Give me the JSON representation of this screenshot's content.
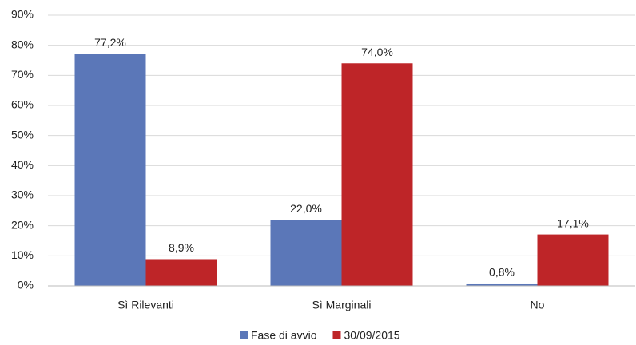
{
  "chart_data": {
    "type": "bar",
    "categories": [
      "Sì Rilevanti",
      "Sì Marginali",
      "No"
    ],
    "series": [
      {
        "name": "Fase di avvio",
        "color": "#5b77b8",
        "values": [
          77.2,
          22.0,
          0.8
        ],
        "value_labels": [
          "77,2%",
          "22,0%",
          "0,8%"
        ]
      },
      {
        "name": "30/09/2015",
        "color": "#be2528",
        "values": [
          8.9,
          74.0,
          17.1
        ],
        "value_labels": [
          "8,9%",
          "74,0%",
          "17,1%"
        ]
      }
    ],
    "ylim": [
      0,
      90
    ],
    "yticks": [
      {
        "value": 0,
        "label": "0%"
      },
      {
        "value": 10,
        "label": "10%"
      },
      {
        "value": 20,
        "label": "20%"
      },
      {
        "value": 30,
        "label": "30%"
      },
      {
        "value": 40,
        "label": "40%"
      },
      {
        "value": 50,
        "label": "50%"
      },
      {
        "value": 60,
        "label": "60%"
      },
      {
        "value": 70,
        "label": "70%"
      },
      {
        "value": 80,
        "label": "80%"
      },
      {
        "value": 90,
        "label": "90%"
      }
    ],
    "grid": true,
    "legend": "bottom"
  }
}
